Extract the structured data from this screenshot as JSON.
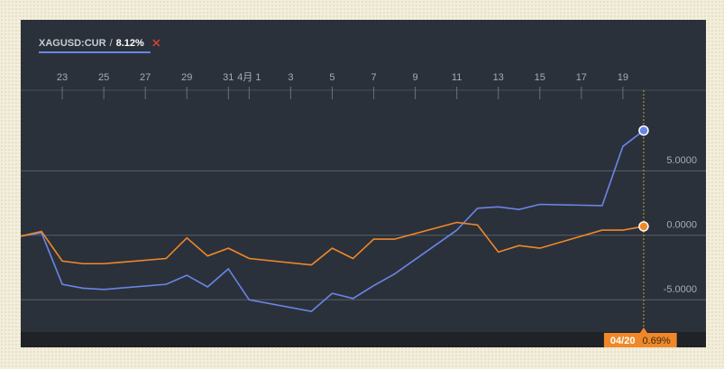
{
  "chart_data": {
    "type": "line",
    "legend_name": "XAGUSD:CUR",
    "x": [
      0,
      1,
      2,
      3,
      4,
      7,
      8,
      9,
      10,
      11,
      14,
      15,
      16,
      17,
      18,
      21,
      22,
      23,
      24,
      25,
      28,
      29,
      30
    ],
    "series": [
      {
        "name": "XAGUSD:CUR",
        "color": "#6a85e8",
        "values": [
          -0.07,
          0.2,
          -3.8,
          -4.1,
          -4.2,
          -3.8,
          -3.1,
          -4.0,
          -2.6,
          -5.0,
          -5.9,
          -4.5,
          -4.9,
          -3.9,
          -3.0,
          0.4,
          2.1,
          2.2,
          2.0,
          2.4,
          2.3,
          6.9,
          8.12
        ],
        "value_labels": [
          null,
          null,
          null,
          null,
          null,
          null,
          null,
          null,
          null,
          null,
          null,
          null,
          null,
          null,
          null,
          null,
          null,
          null,
          null,
          null,
          null,
          null,
          "8.12%"
        ]
      },
      {
        "color": "#f0882a",
        "values": [
          -0.07,
          0.3,
          -2.0,
          -2.2,
          -2.2,
          -1.8,
          -0.2,
          -1.6,
          -1.0,
          -1.8,
          -2.3,
          -1.0,
          -1.8,
          -0.3,
          -0.3,
          1.0,
          0.8,
          -1.3,
          -0.8,
          -1.0,
          0.4,
          0.4,
          0.69
        ],
        "value_labels": [
          null,
          null,
          null,
          null,
          null,
          null,
          null,
          null,
          null,
          null,
          null,
          null,
          null,
          null,
          null,
          null,
          null,
          null,
          null,
          null,
          null,
          null,
          "0.69%"
        ]
      }
    ],
    "crosshair_label": "04/20",
    "xlim": [
      0,
      33
    ],
    "xticks": [
      {
        "value": 2,
        "label": "23"
      },
      {
        "value": 4,
        "label": "25"
      },
      {
        "value": 6,
        "label": "27"
      },
      {
        "value": 8,
        "label": "29"
      },
      {
        "value": 10,
        "label": "31"
      },
      {
        "value": 11,
        "label": "4月 1"
      },
      {
        "value": 13,
        "label": "3"
      },
      {
        "value": 15,
        "label": "5"
      },
      {
        "value": 17,
        "label": "7"
      },
      {
        "value": 19,
        "label": "9"
      },
      {
        "value": 21,
        "label": "11"
      },
      {
        "value": 23,
        "label": "13"
      },
      {
        "value": 25,
        "label": "15"
      },
      {
        "value": 27,
        "label": "17"
      },
      {
        "value": 29,
        "label": "19"
      }
    ],
    "ylim": [
      -7.5,
      11.25
    ],
    "yticks": [
      {
        "value": 5,
        "label": "5.0000"
      },
      {
        "value": 0,
        "label": "0.0000"
      },
      {
        "value": -5,
        "label": "-5.0000"
      }
    ],
    "grid": true
  }
}
